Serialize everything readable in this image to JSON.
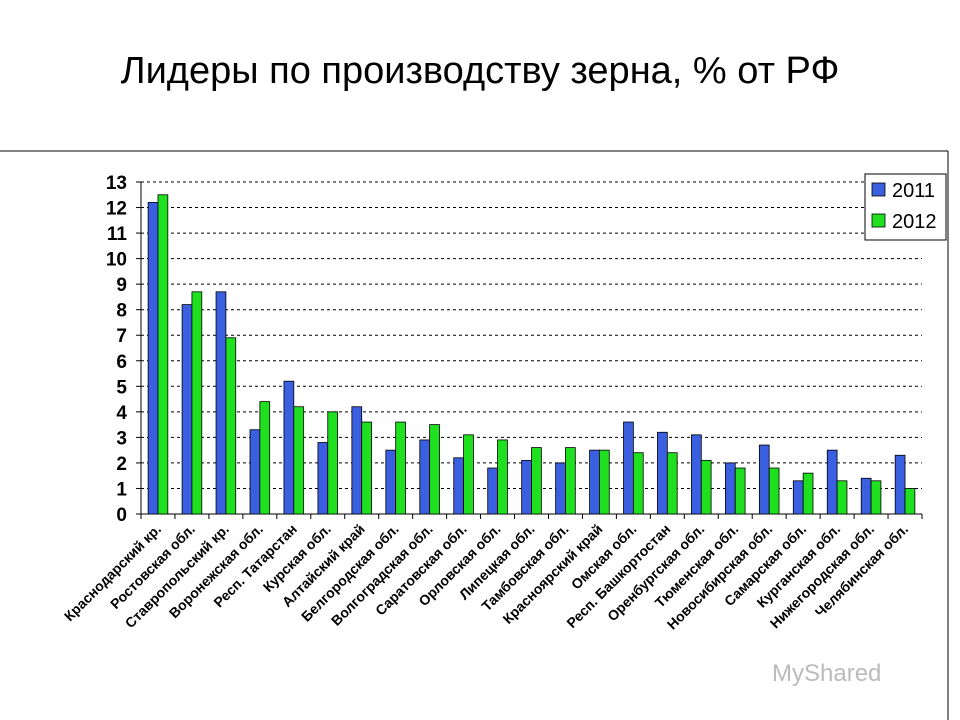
{
  "chart_data": {
    "type": "bar",
    "title": "Лидеры по производству зерна, % от РФ",
    "xlabel": "",
    "ylabel": "",
    "ylim": [
      0,
      13
    ],
    "yticks": [
      0,
      1,
      2,
      3,
      4,
      5,
      6,
      7,
      8,
      9,
      10,
      11,
      12,
      13
    ],
    "grid": true,
    "legend_position": "top-right",
    "categories": [
      "Краснодарский кр.",
      "Ростовская обл.",
      "Ставропольский кр.",
      "Воронежская обл.",
      "Респ. Татарстан",
      "Курская обл.",
      "Алтайский край",
      "Белгородская обл.",
      "Волгоградская обл.",
      "Саратовская обл.",
      "Орловская обл.",
      "Липецкая обл.",
      "Тамбовская обл.",
      "Красноярский край",
      "Омская обл.",
      "Респ. Башкортостан",
      "Оренбургская обл.",
      "Тюменская обл.",
      "Новосибирская обл.",
      "Самарская обл.",
      "Курганская обл.",
      "Нижегородская обл.",
      "Челябинская обл."
    ],
    "series": [
      {
        "name": "2011",
        "color": "#3a5fe0",
        "values": [
          12.2,
          8.2,
          8.7,
          3.3,
          5.2,
          2.8,
          4.2,
          2.5,
          2.9,
          2.2,
          1.8,
          2.1,
          2.0,
          2.5,
          3.6,
          3.2,
          3.1,
          2.0,
          2.7,
          1.3,
          2.5,
          1.4,
          2.3
        ]
      },
      {
        "name": "2012",
        "color": "#1ee01e",
        "values": [
          12.5,
          8.7,
          6.9,
          4.4,
          4.2,
          4.0,
          3.6,
          3.6,
          3.5,
          3.1,
          2.9,
          2.6,
          2.6,
          2.5,
          2.4,
          2.4,
          2.1,
          1.8,
          1.8,
          1.6,
          1.3,
          1.3,
          1.0
        ]
      }
    ]
  },
  "watermark": "MyShared"
}
